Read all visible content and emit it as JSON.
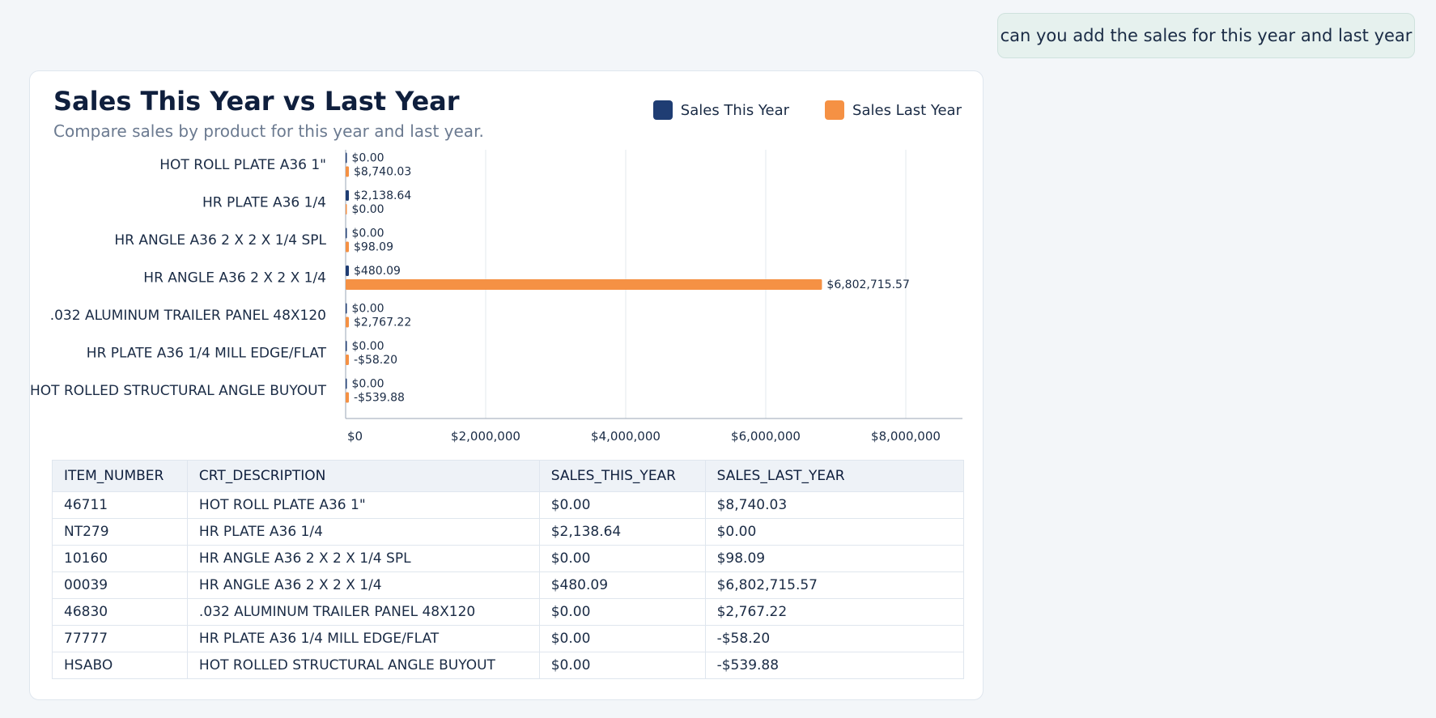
{
  "user_message": "can you add the sales for this year and last year",
  "card": {
    "title": "Sales This Year vs Last Year",
    "subtitle": "Compare sales by product for this year and last year."
  },
  "colors": {
    "this_year": "#1f3d73",
    "last_year": "#f59144",
    "grid": "#e3e8ee",
    "axis": "#9aa6b5"
  },
  "chart_data": {
    "type": "bar",
    "orientation": "horizontal",
    "categories": [
      "HOT ROLL PLATE A36 1\"",
      "HR PLATE A36 1/4",
      "HR ANGLE A36 2 X 2 X 1/4 SPL",
      "HR ANGLE A36 2 X 2 X 1/4",
      ".032 ALUMINUM TRAILER PANEL 48X120",
      "HR PLATE A36 1/4 MILL EDGE/FLAT",
      "HOT ROLLED STRUCTURAL ANGLE BUYOUT"
    ],
    "series": [
      {
        "name": "Sales This Year",
        "values": [
          0.0,
          2138.64,
          0.0,
          480.09,
          0.0,
          0.0,
          0.0
        ],
        "labels": [
          "$0.00",
          "$2,138.64",
          "$0.00",
          "$480.09",
          "$0.00",
          "$0.00",
          "$0.00"
        ]
      },
      {
        "name": "Sales Last Year",
        "values": [
          8740.03,
          0.0,
          98.09,
          6802715.57,
          2767.22,
          -58.2,
          -539.88
        ],
        "labels": [
          "$8,740.03",
          "$0.00",
          "$98.09",
          "$6,802,715.57",
          "$2,767.22",
          "-$58.20",
          "-$539.88"
        ]
      }
    ],
    "xlim": [
      0,
      8800000
    ],
    "xticks": [
      0,
      2000000,
      4000000,
      6000000,
      8000000
    ],
    "xtick_labels": [
      "$0",
      "$2,000,000",
      "$4,000,000",
      "$6,000,000",
      "$8,000,000"
    ],
    "grid": true,
    "legend": "top-right"
  },
  "table": {
    "headers": [
      "ITEM_NUMBER",
      "CRT_DESCRIPTION",
      "SALES_THIS_YEAR",
      "SALES_LAST_YEAR"
    ],
    "rows": [
      [
        "46711",
        "HOT ROLL PLATE A36 1\"",
        "$0.00",
        "$8,740.03"
      ],
      [
        "NT279",
        "HR PLATE A36 1/4",
        "$2,138.64",
        "$0.00"
      ],
      [
        "10160",
        "HR ANGLE A36 2 X 2 X 1/4 SPL",
        "$0.00",
        "$98.09"
      ],
      [
        "00039",
        "HR ANGLE A36 2 X 2 X 1/4",
        "$480.09",
        "$6,802,715.57"
      ],
      [
        "46830",
        ".032 ALUMINUM TRAILER PANEL 48X120",
        "$0.00",
        "$2,767.22"
      ],
      [
        "77777",
        "HR PLATE A36 1/4 MILL EDGE/FLAT",
        "$0.00",
        "-$58.20"
      ],
      [
        "HSABO",
        "HOT ROLLED STRUCTURAL ANGLE BUYOUT",
        "$0.00",
        "-$539.88"
      ]
    ]
  }
}
